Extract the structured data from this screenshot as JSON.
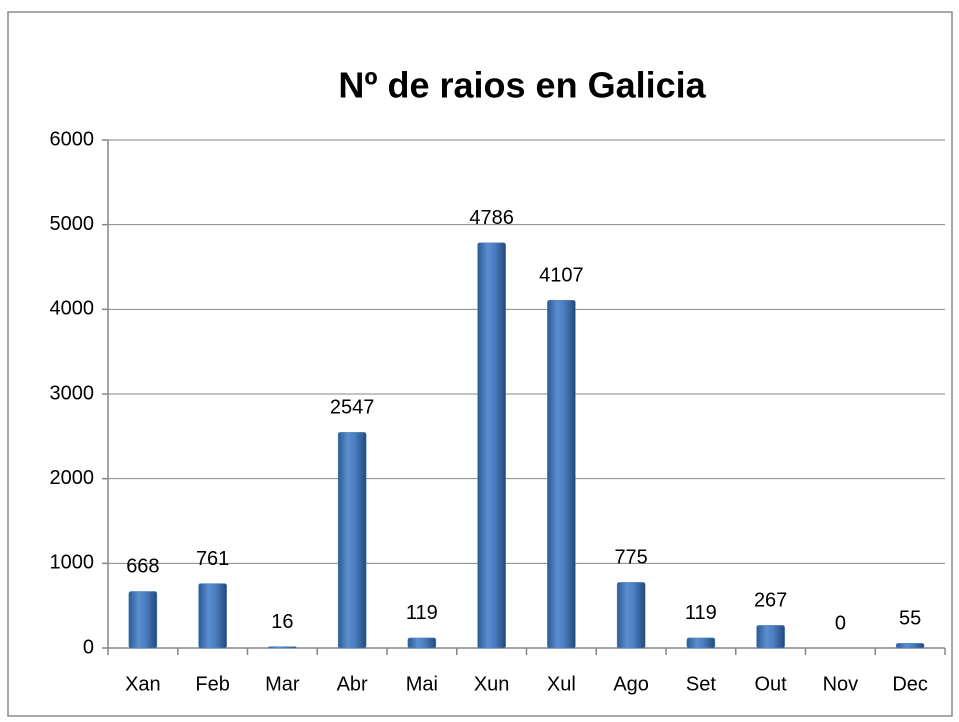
{
  "chart_data": {
    "type": "bar",
    "title": "Nº de raios en Galicia",
    "categories": [
      "Xan",
      "Feb",
      "Mar",
      "Abr",
      "Mai",
      "Xun",
      "Xul",
      "Ago",
      "Set",
      "Out",
      "Nov",
      "Dec"
    ],
    "values": [
      668,
      761,
      16,
      2547,
      119,
      4786,
      4107,
      775,
      119,
      267,
      0,
      55
    ],
    "color": "#4f81bd",
    "ylim": [
      0,
      6000
    ],
    "yticks": [
      0,
      1000,
      2000,
      3000,
      4000,
      5000,
      6000
    ],
    "grid": true
  }
}
